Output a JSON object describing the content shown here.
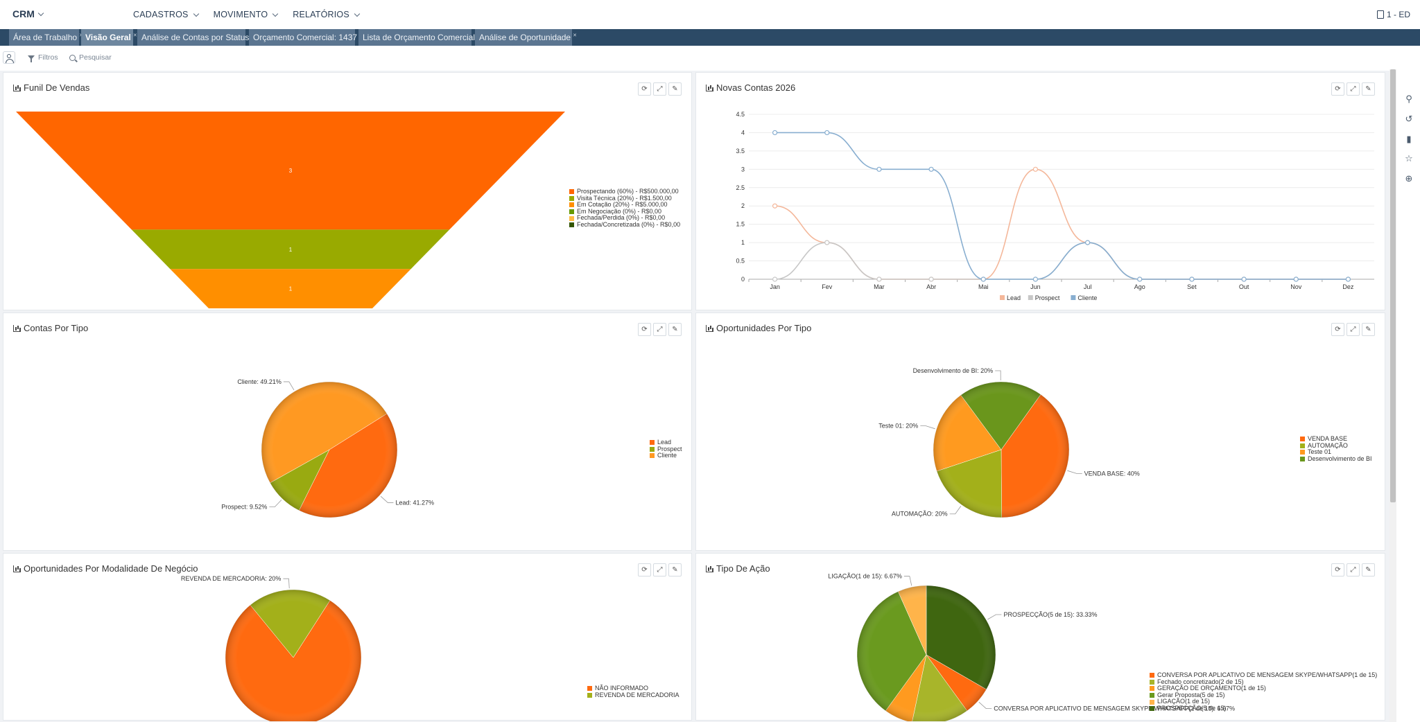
{
  "app": {
    "brand": "CRM",
    "user": "1 - ED"
  },
  "menu": [
    {
      "label": "CADASTROS"
    },
    {
      "label": "MOVIMENTO"
    },
    {
      "label": "RELATÓRIOS"
    }
  ],
  "tabs": [
    {
      "label": "Área de Trabalho",
      "active": false
    },
    {
      "label": "Visão Geral",
      "active": true
    },
    {
      "label": "Análise de Contas por Status",
      "active": false
    },
    {
      "label": "Orçamento Comercial: 1437",
      "active": false
    },
    {
      "label": "Lista de Orçamento Comercial",
      "active": false
    },
    {
      "label": "Análise de Oportunidade",
      "active": false
    }
  ],
  "toolbar": {
    "filters_label": "Filtros",
    "search_label": "Pesquisar"
  },
  "rail_icons": [
    "search-icon",
    "history-icon",
    "bookmark-icon",
    "star-icon",
    "target-icon"
  ],
  "panels": {
    "funil": {
      "title": "Funil De Vendas"
    },
    "novas": {
      "title": "Novas Contas 2026"
    },
    "contas": {
      "title": "Contas Por Tipo"
    },
    "oport": {
      "title": "Oportunidades Por Tipo"
    },
    "modal": {
      "title": "Oportunidades Por Modalidade De Negócio"
    },
    "acao": {
      "title": "Tipo De Ação"
    }
  },
  "chart_data": [
    {
      "id": "funil",
      "type": "funnel",
      "title": "Funil De Vendas",
      "stages": [
        {
          "name": "Prospectando (60%) - R$500.000,00",
          "value": 3,
          "color": "#ff6600"
        },
        {
          "name": "Visita Técnica (20%) - R$1.500,00",
          "value": 1,
          "color": "#99aa00"
        },
        {
          "name": "Em Cotação (20%) - R$5.000,00",
          "value": 1,
          "color": "#ff8f00"
        },
        {
          "name": "Em Negociação (0%) - R$0,00",
          "value": 0,
          "color": "#669900"
        },
        {
          "name": "Fechada/Perdida (0%) - R$0,00",
          "value": 0,
          "color": "#ffbb44"
        },
        {
          "name": "Fechada/Concretizada (0%) - R$0,00",
          "value": 0,
          "color": "#335500"
        }
      ],
      "labels": [
        "3",
        "1",
        "1"
      ]
    },
    {
      "id": "novas",
      "type": "line",
      "title": "Novas Contas 2026",
      "categories": [
        "Jan",
        "Fev",
        "Mar",
        "Abr",
        "Mai",
        "Jun",
        "Jul",
        "Ago",
        "Set",
        "Out",
        "Nov",
        "Dez"
      ],
      "ylim": [
        0,
        4.5
      ],
      "yticks": [
        "0",
        "0.5",
        "1",
        "1.5",
        "2",
        "2.5",
        "3",
        "3.5",
        "4",
        "4.5"
      ],
      "legend_position": "bottom",
      "series": [
        {
          "name": "Lead",
          "color": "#f4b79a",
          "values": [
            2,
            1,
            0,
            0,
            0,
            3,
            1,
            0,
            0,
            0,
            0,
            0
          ]
        },
        {
          "name": "Prospect",
          "color": "#c7c7c7",
          "values": [
            0,
            1,
            0,
            0,
            0,
            0,
            1,
            0,
            0,
            0,
            0,
            0
          ]
        },
        {
          "name": "Cliente",
          "color": "#88aed0",
          "values": [
            4,
            4,
            3,
            3,
            0,
            0,
            1,
            0,
            0,
            0,
            0,
            0
          ]
        }
      ]
    },
    {
      "id": "contas",
      "type": "pie",
      "title": "Contas Por Tipo",
      "slices": [
        {
          "name": "Lead",
          "value": 41.27,
          "label": "Lead: 41.27%",
          "color": "#ff6a10"
        },
        {
          "name": "Prospect",
          "value": 9.52,
          "label": "Prospect: 9.52%",
          "color": "#99aa11"
        },
        {
          "name": "Cliente",
          "value": 49.21,
          "label": "Cliente: 49.21%",
          "color": "#ff9922"
        }
      ]
    },
    {
      "id": "oport",
      "type": "pie",
      "title": "Oportunidades Por Tipo",
      "slices": [
        {
          "name": "VENDA BASE",
          "value": 40,
          "label": "VENDA BASE: 40%",
          "color": "#ff6a10"
        },
        {
          "name": "AUTOMAÇÃO",
          "value": 20,
          "label": "AUTOMAÇÃO: 20%",
          "color": "#a3b01a"
        },
        {
          "name": "Teste 01",
          "value": 20,
          "label": "Teste 01: 20%",
          "color": "#ff9a1f"
        },
        {
          "name": "Desenvolvimento de BI",
          "value": 20,
          "label": "Desenvolvimento de BI: 20%",
          "color": "#6a961c"
        }
      ]
    },
    {
      "id": "modal",
      "type": "pie",
      "title": "Oportunidades Por Modalidade De Negócio",
      "slices": [
        {
          "name": "NÃO INFORMADO",
          "value": 80,
          "label": "",
          "color": "#ff6a10"
        },
        {
          "name": "REVENDA DE MERCADORIA",
          "value": 20,
          "label": "REVENDA DE MERCADORIA: 20%",
          "color": "#a3b01a"
        }
      ]
    },
    {
      "id": "acao",
      "type": "pie",
      "title": "Tipo De Ação",
      "slices": [
        {
          "name": "PROSPECÇÃO(5 de 15)",
          "value": 33.33,
          "label": "PROSPECÇÃO(5 de 15): 33.33%",
          "color": "#3f6610"
        },
        {
          "name": "CONVERSA POR APLICATIVO DE MENSAGEM SKYPE/WHATSAPP(1 de 15)",
          "value": 6.67,
          "label": "CONVERSA POR APLICATIVO DE MENSAGEM SKYPE/WHATSAPP(1 de 15): 6.67%",
          "color": "#ff6a10"
        },
        {
          "name": "Fechado concretizado(2 de 15)",
          "value": 13.33,
          "label": "",
          "color": "#a8b52a"
        },
        {
          "name": "GERAÇÃO DE ORÇAMENTO(1 de 15)",
          "value": 6.67,
          "label": "",
          "color": "#ff9a1f"
        },
        {
          "name": "Gerar Proposta(5 de 15)",
          "value": 33.33,
          "label": "",
          "color": "#6a9a1f"
        },
        {
          "name": "LIGAÇÃO(1 de 15)",
          "value": 6.67,
          "label": "LIGAÇÃO(1 de 15): 6.67%",
          "color": "#ffb44a"
        }
      ],
      "legend_order": [
        "CONVERSA POR APLICATIVO DE MENSAGEM SKYPE/WHATSAPP(1 de 15)",
        "Fechado concretizado(2 de 15)",
        "GERAÇÃO DE ORÇAMENTO(1 de 15)",
        "Gerar Proposta(5 de 15)",
        "LIGAÇÃO(1 de 15)",
        "PROSPECÇÃO(5 de 15)"
      ]
    }
  ]
}
